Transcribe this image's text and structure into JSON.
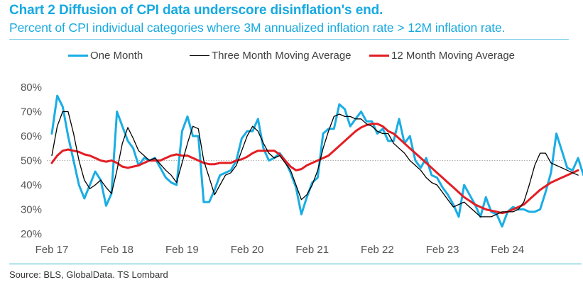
{
  "header": {
    "title": "Chart 2 Diffusion of CPI data underscore disinflation's end.",
    "subtitle": "Percent of CPI individual categories where 3M annualized inflation rate > 12M inflation rate."
  },
  "footer": {
    "source": "Source: BLS, GlobalData. TS Lombard"
  },
  "chart_data": {
    "type": "line",
    "title": "Chart 2 Diffusion of CPI data underscore disinflation's end.",
    "subtitle": "Percent of CPI individual categories where 3M annualized inflation rate > 12M inflation rate.",
    "xlabel": "",
    "ylabel": "",
    "x_start": "Feb 2017",
    "x_frequency": "monthly",
    "x_ticks": [
      "Feb 17",
      "Feb 18",
      "Feb 19",
      "Feb 20",
      "Feb 21",
      "Feb 22",
      "Feb 23",
      "Feb 24"
    ],
    "y_ticks": [
      "20%",
      "30%",
      "40%",
      "50%",
      "60%",
      "70%",
      "80%"
    ],
    "ylim": [
      20,
      80
    ],
    "y_unit": "%",
    "reference_line": {
      "value": 50,
      "style": "dotted"
    },
    "grid": false,
    "legend_position": "top",
    "series": [
      {
        "name": "One Month",
        "color": "#1aade4",
        "values": [
          61,
          76.5,
          72,
          60,
          50,
          40,
          34.5,
          40,
          45.5,
          42,
          31.5,
          36.5,
          70,
          64,
          58,
          55,
          48,
          51,
          50,
          51,
          47,
          43,
          41,
          40,
          62,
          68,
          60,
          60,
          33,
          33,
          38,
          44,
          45,
          46,
          50,
          59,
          62,
          62,
          67,
          55,
          50,
          51,
          53,
          50,
          45,
          39,
          28,
          35,
          41,
          43,
          61,
          63,
          63,
          73,
          71,
          64,
          67,
          70,
          66,
          66,
          61,
          63,
          58,
          58,
          67,
          57,
          60,
          50,
          47,
          51,
          44,
          43,
          39,
          36,
          32,
          27,
          40,
          36,
          32,
          27,
          35,
          29,
          28,
          23,
          29,
          31,
          30,
          30,
          29,
          29,
          30,
          37,
          45,
          61,
          54,
          47,
          46,
          51,
          44,
          44,
          46,
          48
        ],
        "values_note": "approximate monthly readings from Feb 2017"
      },
      {
        "name": "Three Month Moving Average",
        "color": "#000000",
        "values": [
          52,
          64,
          70,
          70,
          61,
          50,
          42,
          38.5,
          40,
          42,
          39,
          36.5,
          46,
          57,
          63.5,
          59,
          54,
          52,
          50,
          51,
          48.5,
          46,
          44,
          41,
          49,
          57,
          64,
          63,
          50,
          43,
          36,
          40,
          44,
          45,
          48,
          54,
          60,
          64,
          62,
          57,
          53,
          51,
          52,
          49,
          46,
          40,
          34,
          36,
          40,
          46,
          55,
          62,
          68,
          69,
          68,
          68,
          67,
          67,
          65,
          64,
          62,
          61,
          61,
          57,
          55,
          53,
          50,
          48,
          46,
          43,
          41,
          40,
          37,
          34,
          31,
          32,
          33,
          31,
          29,
          27,
          27,
          27,
          28,
          29,
          29,
          29,
          30,
          33,
          40,
          48,
          53,
          53,
          49,
          48,
          47,
          46,
          45,
          44
        ],
        "values_note": "approximate monthly readings from Feb 2017"
      },
      {
        "name": "12 Month Moving Average",
        "color": "#e31e24",
        "values": [
          49,
          52,
          54,
          54.5,
          54,
          53.5,
          52.5,
          52,
          51,
          50,
          49.5,
          50,
          49,
          47.5,
          47,
          47.5,
          48,
          49,
          50,
          50,
          50,
          51,
          52,
          52.5,
          52,
          52,
          51,
          50,
          49,
          48.5,
          48.5,
          49,
          49,
          49,
          50,
          50.5,
          51.5,
          53,
          54,
          54,
          54,
          54,
          52.5,
          50,
          47.5,
          46,
          46.5,
          48,
          49,
          50,
          51,
          52,
          54,
          56,
          58,
          60,
          62,
          63.5,
          64.5,
          65,
          65,
          64,
          62,
          61,
          59,
          57,
          55,
          53,
          51,
          49,
          47,
          45,
          43,
          41,
          39,
          37,
          35,
          33.5,
          32,
          31,
          30,
          29.5,
          29,
          28.5,
          29,
          30,
          31,
          32,
          34,
          36,
          38,
          39.5,
          41,
          42,
          43,
          44,
          45,
          46
        ],
        "values_note": "approximate monthly readings from Feb 2017"
      }
    ]
  }
}
